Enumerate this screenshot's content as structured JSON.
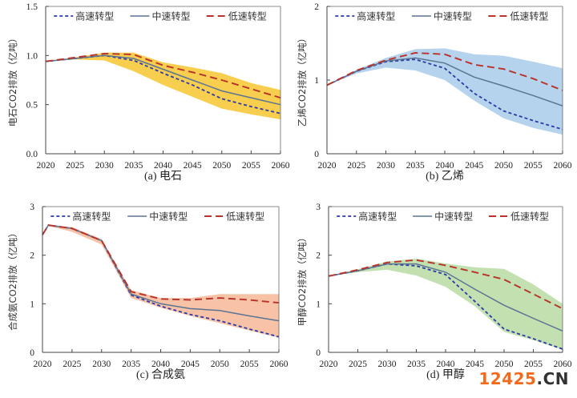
{
  "chart_data": [
    {
      "type": "line",
      "panel": "a",
      "caption": "(a) 电石",
      "title": "",
      "xlabel": "",
      "ylabel": "电石CO2排放（亿吨）",
      "xlim": [
        2020,
        2060
      ],
      "ylim": [
        0,
        1.5
      ],
      "xticks": [
        2020,
        2025,
        2030,
        2035,
        2040,
        2045,
        2050,
        2055,
        2060
      ],
      "yticks": [
        0,
        0.5,
        1.0,
        1.5
      ],
      "ytick_labels": [
        "0.0",
        "0.5",
        "1.0",
        "1.5"
      ],
      "legend": "top",
      "band_color": "#f7c530",
      "x": [
        2020,
        2025,
        2030,
        2035,
        2040,
        2045,
        2050,
        2055,
        2060
      ],
      "series": [
        {
          "name": "高速转型",
          "style": "short-dash",
          "color": "#2b3aa8",
          "values": [
            0.94,
            0.97,
            1.0,
            0.95,
            0.82,
            0.7,
            0.56,
            0.48,
            0.41
          ]
        },
        {
          "name": "中速转型",
          "style": "solid",
          "color": "#5b7493",
          "values": [
            0.94,
            0.97,
            1.0,
            0.97,
            0.86,
            0.75,
            0.64,
            0.57,
            0.5
          ]
        },
        {
          "name": "低速转型",
          "style": "long-dash",
          "color": "#b8322a",
          "values": [
            0.94,
            0.98,
            1.02,
            1.01,
            0.9,
            0.83,
            0.75,
            0.66,
            0.57
          ]
        }
      ],
      "band": {
        "upper": [
          0.94,
          0.98,
          1.03,
          1.03,
          0.93,
          0.88,
          0.82,
          0.72,
          0.65
        ],
        "lower": [
          0.94,
          0.96,
          0.95,
          0.84,
          0.7,
          0.58,
          0.46,
          0.4,
          0.35
        ]
      }
    },
    {
      "type": "line",
      "panel": "b",
      "caption": "(b) 乙烯",
      "title": "",
      "xlabel": "",
      "ylabel": "乙烯CO2排放（亿吨）",
      "xlim": [
        2020,
        2060
      ],
      "ylim": [
        0,
        2
      ],
      "xticks": [
        2020,
        2025,
        2030,
        2035,
        2040,
        2045,
        2050,
        2055,
        2060
      ],
      "yticks": [
        0,
        1,
        2
      ],
      "ytick_labels": [
        "0",
        "1",
        "2"
      ],
      "legend": "top",
      "band_color": "#a9cbea",
      "x": [
        2020,
        2025,
        2030,
        2035,
        2040,
        2045,
        2050,
        2055,
        2060
      ],
      "series": [
        {
          "name": "高速转型",
          "style": "short-dash",
          "color": "#2b3aa8",
          "values": [
            0.93,
            1.12,
            1.25,
            1.28,
            1.16,
            0.82,
            0.58,
            0.45,
            0.33
          ]
        },
        {
          "name": "中速转型",
          "style": "solid",
          "color": "#5b7493",
          "values": [
            0.93,
            1.12,
            1.26,
            1.3,
            1.23,
            1.04,
            0.92,
            0.79,
            0.65
          ]
        },
        {
          "name": "低速转型",
          "style": "long-dash",
          "color": "#b8322a",
          "values": [
            0.93,
            1.13,
            1.27,
            1.37,
            1.35,
            1.21,
            1.15,
            1.02,
            0.86
          ]
        }
      ],
      "band": {
        "upper": [
          0.93,
          1.14,
          1.3,
          1.42,
          1.43,
          1.35,
          1.33,
          1.25,
          1.16
        ],
        "lower": [
          0.93,
          1.09,
          1.17,
          1.13,
          1.0,
          0.72,
          0.48,
          0.35,
          0.26
        ]
      }
    },
    {
      "type": "line",
      "panel": "c",
      "caption": "(c) 合成氨",
      "title": "",
      "xlabel": "",
      "ylabel": "合成氨CO2排放（亿吨）",
      "xlim": [
        2020,
        2060
      ],
      "ylim": [
        0,
        3
      ],
      "xticks": [
        2020,
        2025,
        2030,
        2035,
        2040,
        2045,
        2050,
        2055,
        2060
      ],
      "yticks": [
        0,
        1,
        2,
        3
      ],
      "ytick_labels": [
        "0",
        "1",
        "2",
        "3"
      ],
      "legend": "top",
      "band_color": "#f7b796",
      "x": [
        2020,
        2021,
        2025,
        2030,
        2035,
        2040,
        2045,
        2050,
        2055,
        2060
      ],
      "series": [
        {
          "name": "高速转型",
          "style": "short-dash",
          "color": "#2b3aa8",
          "values": [
            2.42,
            2.62,
            2.55,
            2.3,
            1.18,
            0.95,
            0.78,
            0.65,
            0.48,
            0.32
          ]
        },
        {
          "name": "中速转型",
          "style": "solid",
          "color": "#5b7493",
          "values": [
            2.42,
            2.62,
            2.55,
            2.3,
            1.2,
            1.0,
            0.9,
            0.86,
            0.75,
            0.65
          ]
        },
        {
          "name": "低速转型",
          "style": "long-dash",
          "color": "#b8322a",
          "values": [
            2.42,
            2.62,
            2.55,
            2.3,
            1.25,
            1.1,
            1.08,
            1.12,
            1.08,
            1.02
          ]
        }
      ],
      "band": {
        "upper": [
          2.42,
          2.62,
          2.58,
          2.33,
          1.28,
          1.12,
          1.12,
          1.2,
          1.2,
          1.2
        ],
        "lower": [
          2.42,
          2.6,
          2.48,
          2.22,
          1.12,
          0.92,
          0.75,
          0.6,
          0.45,
          0.3
        ]
      }
    },
    {
      "type": "line",
      "panel": "d",
      "caption": "(d) 甲醇",
      "title": "",
      "xlabel": "",
      "ylabel": "甲醇CO2排放（亿吨）",
      "xlim": [
        2020,
        2060
      ],
      "ylim": [
        0,
        3
      ],
      "xticks": [
        2020,
        2025,
        2030,
        2035,
        2040,
        2045,
        2050,
        2055,
        2060
      ],
      "yticks": [
        0,
        1,
        2,
        3
      ],
      "ytick_labels": [
        "0",
        "1",
        "2",
        "3"
      ],
      "legend": "top",
      "band_color": "#b9dca2",
      "x": [
        2020,
        2025,
        2030,
        2035,
        2040,
        2045,
        2050,
        2055,
        2060
      ],
      "series": [
        {
          "name": "高速转型",
          "style": "short-dash",
          "color": "#2b3aa8",
          "values": [
            1.57,
            1.68,
            1.82,
            1.78,
            1.6,
            1.05,
            0.48,
            0.28,
            0.07
          ]
        },
        {
          "name": "中速转型",
          "style": "solid",
          "color": "#5b7493",
          "values": [
            1.57,
            1.68,
            1.82,
            1.82,
            1.65,
            1.3,
            0.97,
            0.7,
            0.44
          ]
        },
        {
          "name": "低速转型",
          "style": "long-dash",
          "color": "#b8322a",
          "values": [
            1.57,
            1.7,
            1.85,
            1.9,
            1.79,
            1.65,
            1.5,
            1.2,
            0.9
          ]
        }
      ],
      "band": {
        "upper": [
          1.57,
          1.71,
          1.87,
          1.93,
          1.83,
          1.75,
          1.72,
          1.4,
          1.0
        ],
        "lower": [
          1.57,
          1.65,
          1.7,
          1.58,
          1.35,
          0.95,
          0.42,
          0.25,
          0.05
        ]
      }
    }
  ],
  "watermark": {
    "number": "12425",
    "domain": ".CN"
  }
}
